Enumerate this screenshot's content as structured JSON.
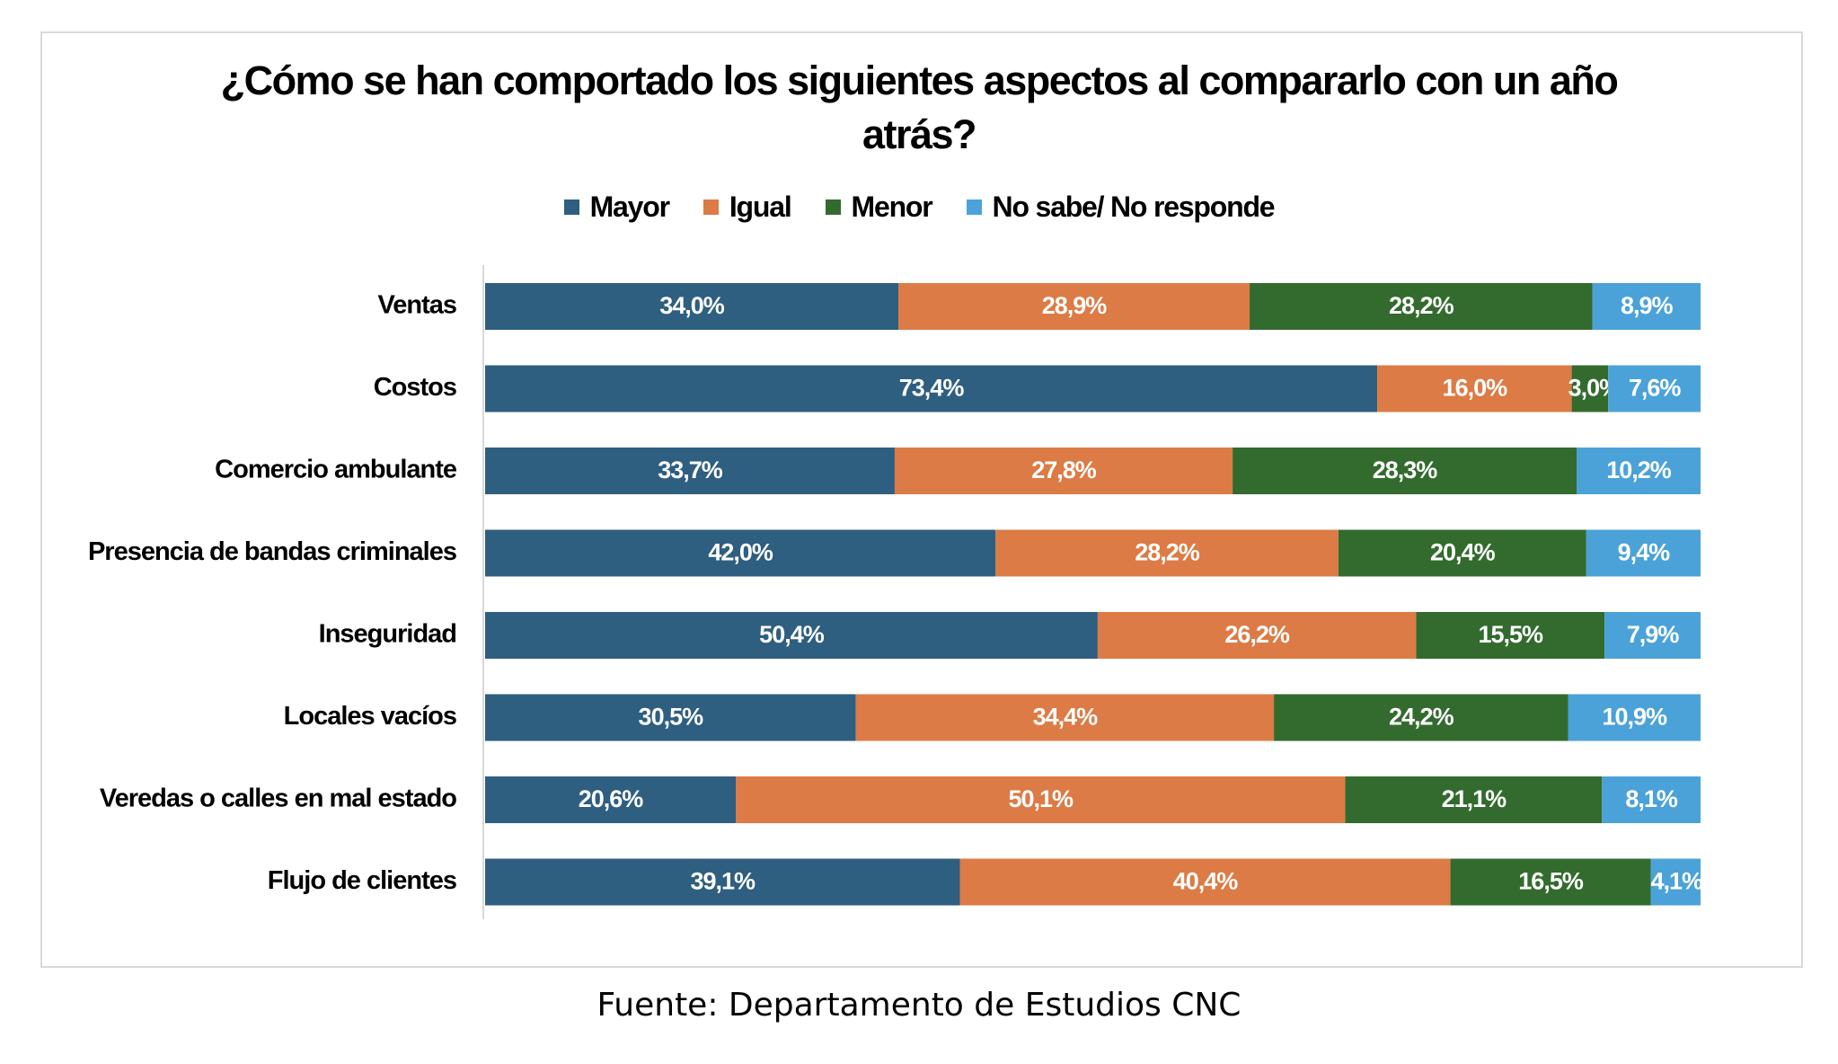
{
  "chart_data": {
    "type": "bar",
    "orientation": "horizontal",
    "stacked": true,
    "title": "¿Cómo se han comportado los siguientes aspectos al compararlo con un año atrás?",
    "title_lines": [
      "¿Cómo se han comportado los siguientes aspectos al compararlo con un año",
      "atrás?"
    ],
    "categories": [
      "Ventas",
      "Costos",
      "Comercio ambulante",
      "Presencia de bandas criminales",
      "Inseguridad",
      "Locales vacíos",
      "Veredas o calles en mal estado",
      "Flujo de clientes"
    ],
    "series": [
      {
        "name": "Mayor",
        "color": "#2e5e80",
        "values": [
          34.0,
          73.4,
          33.7,
          42.0,
          50.4,
          30.5,
          20.6,
          39.1
        ],
        "labels": [
          "34,0%",
          "73,4%",
          "33,7%",
          "42,0%",
          "50,4%",
          "30,5%",
          "20,6%",
          "39,1%"
        ]
      },
      {
        "name": "Igual",
        "color": "#dc7b45",
        "values": [
          28.9,
          16.0,
          27.8,
          28.2,
          26.2,
          34.4,
          50.1,
          40.4
        ],
        "labels": [
          "28,9%",
          "16,0%",
          "27,8%",
          "28,2%",
          "26,2%",
          "34,4%",
          "50,1%",
          "40,4%"
        ]
      },
      {
        "name": "Menor",
        "color": "#336b2e",
        "values": [
          28.2,
          3.0,
          28.3,
          20.4,
          15.5,
          24.2,
          21.1,
          16.5
        ],
        "labels": [
          "28,2%",
          "3,0%",
          "28,3%",
          "20,4%",
          "15,5%",
          "24,2%",
          "21,1%",
          "16,5%"
        ]
      },
      {
        "name": "No sabe/ No responde",
        "color": "#4ba2d8",
        "values": [
          8.9,
          7.6,
          10.2,
          9.4,
          7.9,
          10.9,
          8.1,
          4.1
        ],
        "labels": [
          "8,9%",
          "7,6%",
          "10,2%",
          "9,4%",
          "7,9%",
          "10,9%",
          "8,1%",
          "4,1%"
        ]
      }
    ],
    "xlim": [
      0,
      100
    ],
    "grid": false,
    "legend": "top-center"
  },
  "source": "Fuente: Departamento de Estudios CNC"
}
